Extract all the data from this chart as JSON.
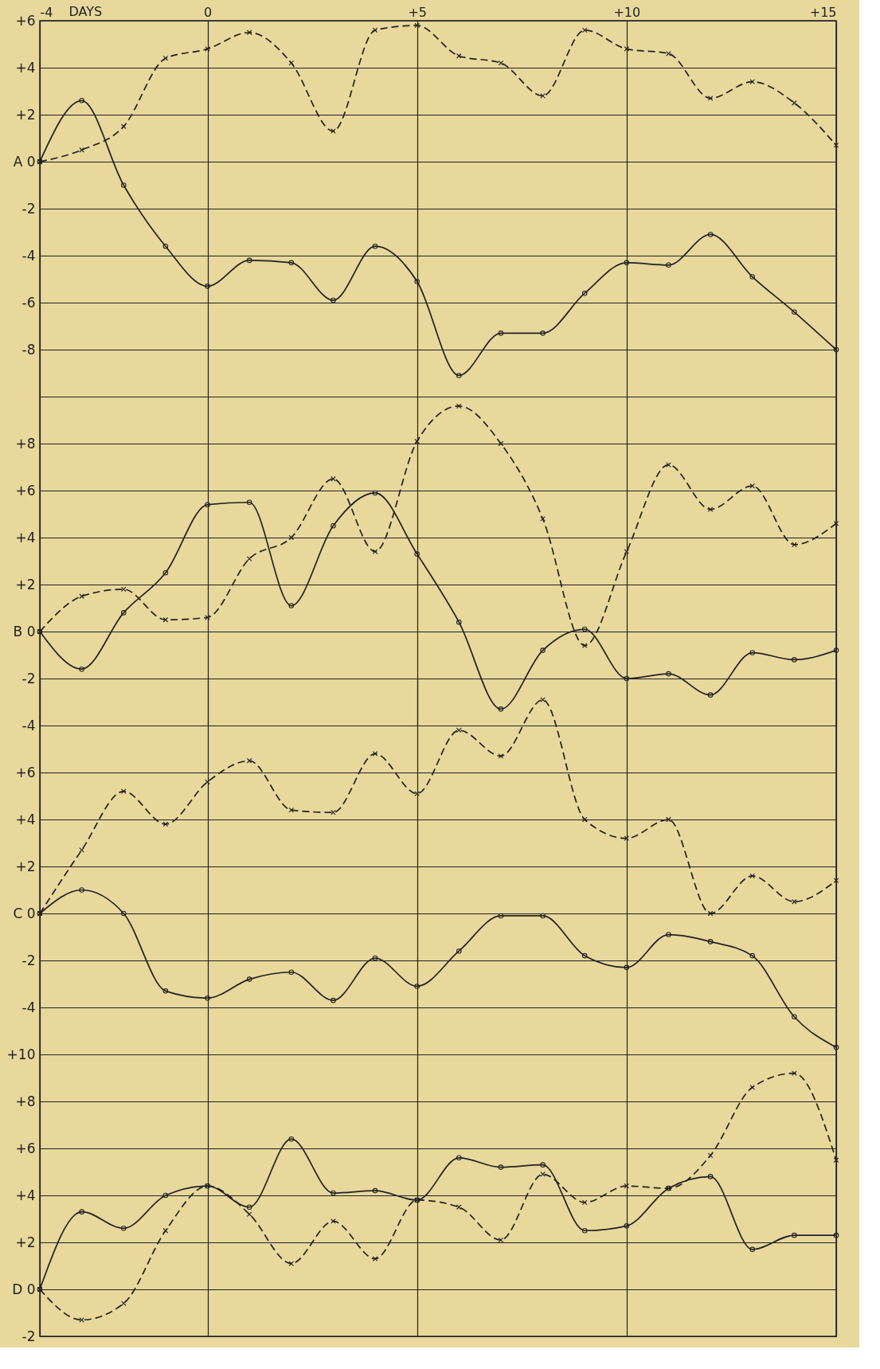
{
  "chart_data": [
    {
      "type": "line",
      "xlabel": "DAYS",
      "x": [
        -4,
        -3,
        -2,
        -1,
        0,
        1,
        2,
        3,
        4,
        5,
        6,
        7,
        8,
        9,
        10,
        11,
        12,
        13,
        14,
        15
      ],
      "xlim": [
        -4,
        15
      ],
      "xticks": [
        -4,
        0,
        {
          "value": 5,
          "label": "+5"
        },
        {
          "value": 10,
          "label": "+10"
        },
        {
          "value": 15,
          "label": "+15"
        }
      ],
      "ylim": [
        -10,
        6
      ],
      "yticks": [
        {
          "value": 6,
          "label": "+6"
        },
        {
          "value": 4,
          "label": "+4"
        },
        {
          "value": 2,
          "label": "+2"
        },
        {
          "value": 0,
          "label": "A 0"
        },
        -2,
        -4,
        -6,
        -8,
        {
          "value": -10,
          "label": null
        }
      ],
      "grid": true,
      "series": [
        {
          "color": "#222222",
          "line_style": "dashed",
          "marker": "cross",
          "values": [
            0,
            0.5,
            1.5,
            4.4,
            4.8,
            5.5,
            4.2,
            1.3,
            5.6,
            5.8,
            4.5,
            4.2,
            2.8,
            5.6,
            4.8,
            4.6,
            2.7,
            3.4,
            2.5,
            0.7
          ]
        },
        {
          "color": "#222222",
          "line_style": "solid",
          "marker": "circle",
          "values": [
            0,
            2.6,
            -1.0,
            -3.6,
            -5.3,
            -4.2,
            -4.3,
            -5.9,
            -3.6,
            -5.1,
            -9.1,
            -7.3,
            -7.3,
            -5.6,
            -4.3,
            -4.4,
            -3.1,
            -4.9,
            -6.4,
            -8.0
          ]
        }
      ]
    },
    {
      "type": "line",
      "x": [
        -4,
        -3,
        -2,
        -1,
        0,
        1,
        2,
        3,
        4,
        5,
        6,
        7,
        8,
        9,
        10,
        11,
        12,
        13,
        14,
        15
      ],
      "xlim": [
        -4,
        15
      ],
      "xticks": [
        -4,
        0,
        5,
        10,
        15
      ],
      "ylim": [
        -4,
        10
      ],
      "yticks": [
        {
          "value": 10,
          "label": null
        },
        {
          "value": 8,
          "label": "+8"
        },
        {
          "value": 6,
          "label": "+6"
        },
        {
          "value": 4,
          "label": "+4"
        },
        {
          "value": 2,
          "label": "+2"
        },
        {
          "value": 0,
          "label": "B 0"
        },
        -2,
        -4
      ],
      "grid": true,
      "tick_labels": "y",
      "series": [
        {
          "color": "#222222",
          "line_style": "dashed",
          "marker": "cross",
          "values": [
            0,
            1.5,
            1.8,
            0.5,
            0.6,
            3.1,
            4.0,
            6.5,
            3.4,
            8.1,
            9.6,
            8.0,
            4.8,
            -0.6,
            3.4,
            7.1,
            5.2,
            6.2,
            3.7,
            4.6
          ]
        },
        {
          "color": "#222222",
          "line_style": "solid",
          "marker": "circle",
          "values": [
            0,
            -1.6,
            0.8,
            2.5,
            5.4,
            5.5,
            1.1,
            4.5,
            5.9,
            3.3,
            0.4,
            -3.3,
            -0.8,
            0.1,
            -2.0,
            -1.8,
            -2.7,
            -0.9,
            -1.2,
            -0.8
          ]
        }
      ]
    },
    {
      "type": "line",
      "x": [
        -4,
        -3,
        -2,
        -1,
        0,
        1,
        2,
        3,
        4,
        5,
        6,
        7,
        8,
        9,
        10,
        11,
        12,
        13,
        14,
        15
      ],
      "xlim": [
        -4,
        15
      ],
      "xticks": [
        -4,
        0,
        5,
        10,
        15
      ],
      "ylim": [
        -6,
        10
      ],
      "yticks": [
        {
          "value": 8,
          "label": null
        },
        {
          "value": 6,
          "label": "+6"
        },
        {
          "value": 4,
          "label": "+4"
        },
        {
          "value": 2,
          "label": "+2"
        },
        {
          "value": 0,
          "label": "C 0"
        },
        -2,
        -4,
        {
          "value": -6,
          "label": null
        }
      ],
      "grid": true,
      "tick_labels": "y",
      "series": [
        {
          "color": "#222222",
          "line_style": "dashed",
          "marker": "cross",
          "values": [
            0,
            2.7,
            5.2,
            3.8,
            5.6,
            6.5,
            4.4,
            4.3,
            6.8,
            5.1,
            7.8,
            6.7,
            9.1,
            4.0,
            3.2,
            4.0,
            0,
            1.6,
            0.5,
            1.4
          ]
        },
        {
          "color": "#222222",
          "line_style": "solid",
          "marker": "circle",
          "values": [
            0,
            1.0,
            0,
            -3.3,
            -3.6,
            -2.8,
            -2.5,
            -3.7,
            -1.9,
            -3.1,
            -1.6,
            -0.1,
            -0.1,
            -1.8,
            -2.3,
            -0.9,
            -1.2,
            -1.8,
            -4.4,
            -5.7
          ]
        }
      ]
    },
    {
      "type": "line",
      "x": [
        -4,
        -3,
        -2,
        -1,
        0,
        1,
        2,
        3,
        4,
        5,
        6,
        7,
        8,
        9,
        10,
        11,
        12,
        13,
        14,
        15
      ],
      "xlim": [
        -4,
        15
      ],
      "xticks": [
        -4,
        0,
        5,
        10,
        15
      ],
      "ylim": [
        -2,
        10
      ],
      "yticks": [
        {
          "value": 10,
          "label": "+10"
        },
        {
          "value": 8,
          "label": "+8"
        },
        {
          "value": 6,
          "label": "+6"
        },
        {
          "value": 4,
          "label": "+4"
        },
        {
          "value": 2,
          "label": "+2"
        },
        {
          "value": 0,
          "label": "D 0"
        },
        -2
      ],
      "grid": true,
      "tick_labels": "y",
      "series": [
        {
          "color": "#222222",
          "line_style": "dashed",
          "marker": "cross",
          "values": [
            0,
            -1.3,
            -0.6,
            2.5,
            4.4,
            3.2,
            1.1,
            2.9,
            1.3,
            3.8,
            3.5,
            2.1,
            4.9,
            3.7,
            4.4,
            4.3,
            5.7,
            8.6,
            9.2,
            5.5
          ]
        },
        {
          "color": "#222222",
          "line_style": "solid",
          "marker": "circle",
          "values": [
            0,
            3.3,
            2.6,
            4.0,
            4.4,
            3.5,
            6.4,
            4.1,
            4.2,
            3.8,
            5.6,
            5.2,
            5.3,
            2.5,
            2.7,
            4.3,
            4.8,
            1.7,
            2.3,
            2.3
          ]
        }
      ]
    }
  ]
}
